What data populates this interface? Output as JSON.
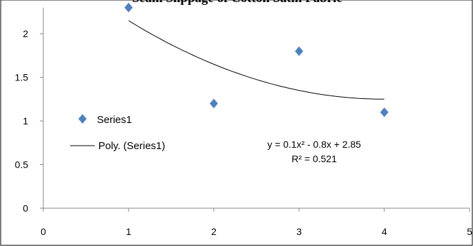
{
  "chart_data": {
    "type": "scatter",
    "title": "Seam Slippage of Cotton Satin Fabric",
    "xlabel": "",
    "ylabel": "",
    "xlim": [
      0,
      5
    ],
    "ylim": [
      0,
      2.3
    ],
    "x_ticks": [
      "0",
      "1",
      "2",
      "3",
      "4",
      "5"
    ],
    "y_ticks": [
      "0",
      "0.5",
      "1",
      "1.5",
      "2"
    ],
    "series": [
      {
        "name": "Series1",
        "x": [
          1,
          2,
          3,
          4
        ],
        "y": [
          2.3,
          1.2,
          1.8,
          1.1
        ],
        "marker": "diamond",
        "color": "#4F81BD"
      }
    ],
    "trendline": {
      "name": "Poly. (Series1)",
      "type": "polynomial",
      "coefficients": [
        0.1,
        -0.8,
        2.85
      ],
      "x_range": [
        1,
        4
      ],
      "color": "#000000",
      "equation": "y = 0.1x² - 0.8x + 2.85",
      "r_squared": "R² = 0.521"
    },
    "legend": {
      "position": "left-middle"
    },
    "grid": false
  }
}
